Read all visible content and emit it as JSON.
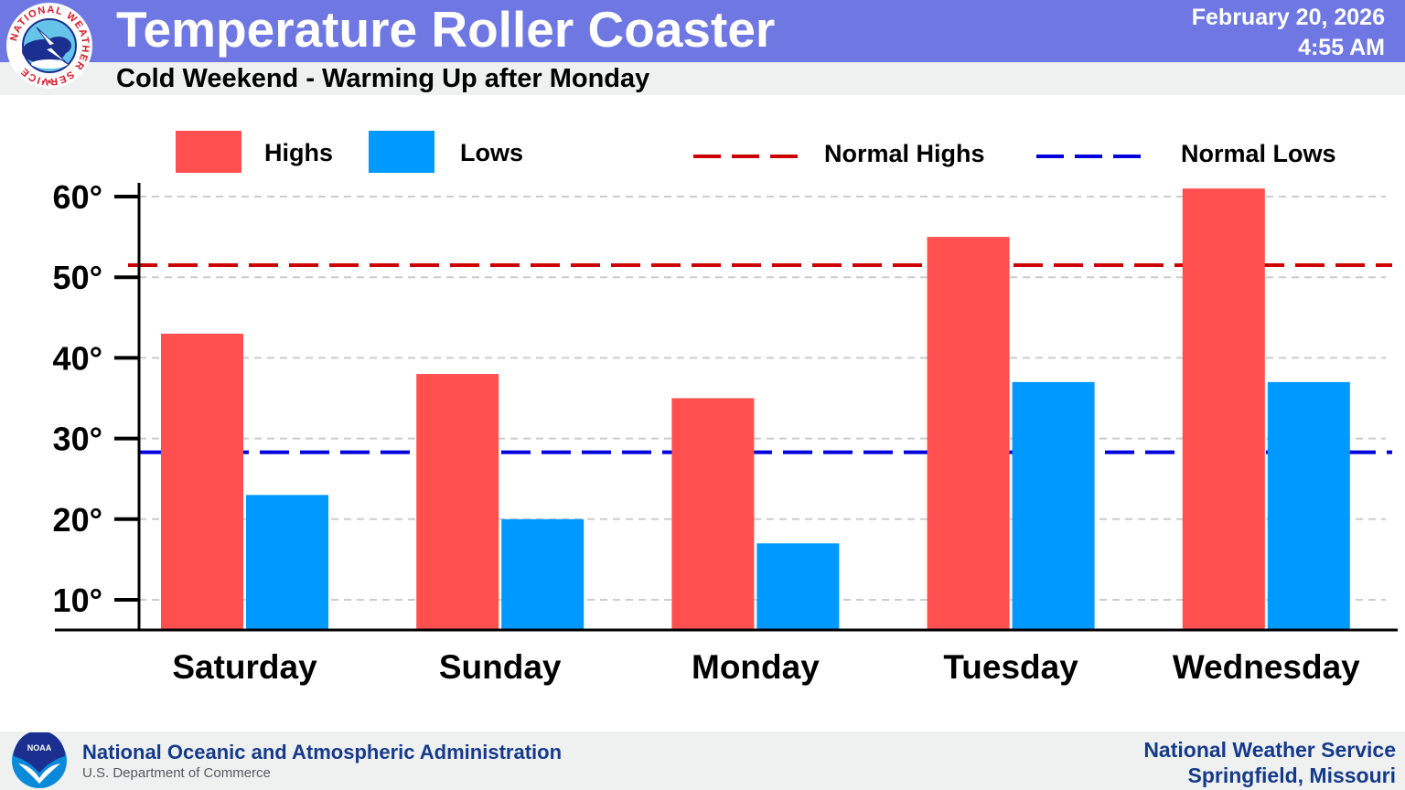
{
  "header": {
    "title": "Temperature Roller Coaster",
    "subtitle": "Cold Weekend - Warming Up after Monday",
    "date": "February 20, 2026",
    "time": "4:55 AM",
    "logo_text": "NATIONAL WEATHER SERVICE"
  },
  "footer": {
    "agency_name": "National Oceanic and Atmospheric Administration",
    "agency_dept": "U.S. Department of Commerce",
    "logo_text": "NOAA",
    "office_name": "National Weather Service",
    "office_location": "Springfield, Missouri"
  },
  "colors": {
    "highs": "#ff4f4f",
    "lows": "#0099ff",
    "normal_highs": "#cc0000",
    "normal_lows": "#0000dd",
    "header": "#6f78e2",
    "footer_text": "#163a8a"
  },
  "chart_data": {
    "type": "bar",
    "title": "Temperature Roller Coaster",
    "subtitle": "Cold Weekend - Warming Up after Monday",
    "xlabel": "",
    "ylabel": "",
    "ylim": [
      6.5,
      62
    ],
    "grid": true,
    "legend_position": "top",
    "categories": [
      "Saturday",
      "Sunday",
      "Monday",
      "Tuesday",
      "Wednesday"
    ],
    "series": [
      {
        "name": "Highs",
        "values": [
          43,
          38,
          35,
          55,
          61
        ]
      },
      {
        "name": "Lows",
        "values": [
          23,
          20,
          17,
          37,
          37
        ]
      }
    ],
    "reference_lines": [
      {
        "name": "Normal Highs",
        "value": 51.5
      },
      {
        "name": "Normal Lows",
        "value": 28.3
      }
    ],
    "yticks": [
      10,
      20,
      30,
      40,
      50,
      60
    ],
    "ytick_labels": [
      "10°",
      "20°",
      "30°",
      "40°",
      "50°",
      "60°"
    ],
    "legend": [
      "Highs",
      "Lows",
      "Normal Highs",
      "Normal Lows"
    ]
  }
}
